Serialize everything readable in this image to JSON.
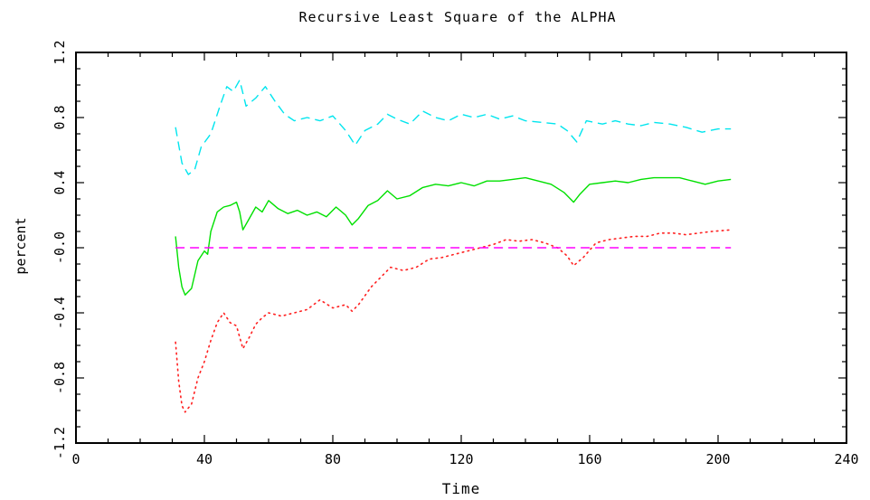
{
  "chart_data": {
    "type": "line",
    "title": "Recursive Least Square of the ALPHA",
    "xlabel": "Time",
    "ylabel": "percent",
    "xlim": [
      0,
      240
    ],
    "ylim": [
      -1.2,
      1.2
    ],
    "x_ticks": [
      0,
      40,
      80,
      120,
      160,
      200,
      240
    ],
    "x_tick_labels": [
      "0",
      "40",
      "80",
      "120",
      "160",
      "200",
      "240"
    ],
    "y_ticks": [
      -1.2,
      -0.8,
      -0.4,
      0.0,
      0.4,
      0.8,
      1.2
    ],
    "y_tick_labels": [
      "-1.2",
      "-0.8",
      "-0.4",
      "-0.0",
      "0.4",
      "0.8",
      "1.2"
    ],
    "grid": false,
    "series": [
      {
        "color": "#00e5ee",
        "style": "dashed",
        "points": [
          [
            31,
            0.74
          ],
          [
            33,
            0.52
          ],
          [
            35,
            0.45
          ],
          [
            37,
            0.48
          ],
          [
            39,
            0.62
          ],
          [
            42,
            0.7
          ],
          [
            45,
            0.88
          ],
          [
            47,
            0.99
          ],
          [
            49,
            0.96
          ],
          [
            51,
            1.03
          ],
          [
            53,
            0.87
          ],
          [
            56,
            0.92
          ],
          [
            59,
            0.99
          ],
          [
            62,
            0.9
          ],
          [
            65,
            0.82
          ],
          [
            68,
            0.78
          ],
          [
            72,
            0.8
          ],
          [
            76,
            0.78
          ],
          [
            80,
            0.81
          ],
          [
            84,
            0.72
          ],
          [
            87,
            0.63
          ],
          [
            90,
            0.72
          ],
          [
            94,
            0.76
          ],
          [
            97,
            0.82
          ],
          [
            100,
            0.79
          ],
          [
            104,
            0.76
          ],
          [
            108,
            0.84
          ],
          [
            112,
            0.8
          ],
          [
            116,
            0.78
          ],
          [
            120,
            0.82
          ],
          [
            124,
            0.8
          ],
          [
            128,
            0.82
          ],
          [
            132,
            0.79
          ],
          [
            136,
            0.81
          ],
          [
            140,
            0.78
          ],
          [
            145,
            0.77
          ],
          [
            150,
            0.76
          ],
          [
            153,
            0.72
          ],
          [
            156,
            0.65
          ],
          [
            159,
            0.78
          ],
          [
            164,
            0.76
          ],
          [
            168,
            0.78
          ],
          [
            172,
            0.76
          ],
          [
            176,
            0.75
          ],
          [
            180,
            0.77
          ],
          [
            185,
            0.76
          ],
          [
            190,
            0.74
          ],
          [
            195,
            0.71
          ],
          [
            200,
            0.73
          ],
          [
            204,
            0.73
          ]
        ]
      },
      {
        "color": "#00e000",
        "style": "solid",
        "points": [
          [
            31,
            0.07
          ],
          [
            32,
            -0.12
          ],
          [
            33,
            -0.24
          ],
          [
            34,
            -0.29
          ],
          [
            36,
            -0.25
          ],
          [
            38,
            -0.08
          ],
          [
            40,
            -0.02
          ],
          [
            41,
            -0.04
          ],
          [
            42,
            0.1
          ],
          [
            44,
            0.22
          ],
          [
            46,
            0.25
          ],
          [
            48,
            0.26
          ],
          [
            50,
            0.28
          ],
          [
            51,
            0.22
          ],
          [
            52,
            0.11
          ],
          [
            54,
            0.18
          ],
          [
            56,
            0.25
          ],
          [
            58,
            0.22
          ],
          [
            60,
            0.29
          ],
          [
            63,
            0.24
          ],
          [
            66,
            0.21
          ],
          [
            69,
            0.23
          ],
          [
            72,
            0.2
          ],
          [
            75,
            0.22
          ],
          [
            78,
            0.19
          ],
          [
            81,
            0.25
          ],
          [
            84,
            0.2
          ],
          [
            86,
            0.14
          ],
          [
            88,
            0.18
          ],
          [
            91,
            0.26
          ],
          [
            94,
            0.29
          ],
          [
            97,
            0.35
          ],
          [
            100,
            0.3
          ],
          [
            104,
            0.32
          ],
          [
            108,
            0.37
          ],
          [
            112,
            0.39
          ],
          [
            116,
            0.38
          ],
          [
            120,
            0.4
          ],
          [
            124,
            0.38
          ],
          [
            128,
            0.41
          ],
          [
            132,
            0.41
          ],
          [
            136,
            0.42
          ],
          [
            140,
            0.43
          ],
          [
            144,
            0.41
          ],
          [
            148,
            0.39
          ],
          [
            152,
            0.34
          ],
          [
            155,
            0.28
          ],
          [
            157,
            0.33
          ],
          [
            160,
            0.39
          ],
          [
            164,
            0.4
          ],
          [
            168,
            0.41
          ],
          [
            172,
            0.4
          ],
          [
            176,
            0.42
          ],
          [
            180,
            0.43
          ],
          [
            184,
            0.43
          ],
          [
            188,
            0.43
          ],
          [
            192,
            0.41
          ],
          [
            196,
            0.39
          ],
          [
            200,
            0.41
          ],
          [
            204,
            0.42
          ]
        ]
      },
      {
        "color": "#ff2020",
        "style": "dotted",
        "points": [
          [
            31,
            -0.58
          ],
          [
            32,
            -0.82
          ],
          [
            33,
            -0.97
          ],
          [
            34,
            -1.01
          ],
          [
            36,
            -0.96
          ],
          [
            38,
            -0.8
          ],
          [
            40,
            -0.7
          ],
          [
            42,
            -0.57
          ],
          [
            44,
            -0.46
          ],
          [
            46,
            -0.4
          ],
          [
            48,
            -0.46
          ],
          [
            50,
            -0.48
          ],
          [
            52,
            -0.62
          ],
          [
            54,
            -0.55
          ],
          [
            56,
            -0.47
          ],
          [
            58,
            -0.43
          ],
          [
            60,
            -0.4
          ],
          [
            64,
            -0.42
          ],
          [
            68,
            -0.4
          ],
          [
            72,
            -0.38
          ],
          [
            76,
            -0.32
          ],
          [
            80,
            -0.37
          ],
          [
            84,
            -0.35
          ],
          [
            86,
            -0.39
          ],
          [
            88,
            -0.35
          ],
          [
            92,
            -0.24
          ],
          [
            96,
            -0.16
          ],
          [
            98,
            -0.12
          ],
          [
            102,
            -0.14
          ],
          [
            106,
            -0.12
          ],
          [
            110,
            -0.07
          ],
          [
            114,
            -0.06
          ],
          [
            118,
            -0.04
          ],
          [
            122,
            -0.02
          ],
          [
            126,
            0.0
          ],
          [
            130,
            0.02
          ],
          [
            134,
            0.05
          ],
          [
            138,
            0.04
          ],
          [
            142,
            0.05
          ],
          [
            146,
            0.03
          ],
          [
            150,
            0.0
          ],
          [
            153,
            -0.05
          ],
          [
            155,
            -0.11
          ],
          [
            158,
            -0.06
          ],
          [
            162,
            0.03
          ],
          [
            166,
            0.05
          ],
          [
            170,
            0.06
          ],
          [
            174,
            0.07
          ],
          [
            178,
            0.07
          ],
          [
            182,
            0.09
          ],
          [
            186,
            0.09
          ],
          [
            190,
            0.08
          ],
          [
            194,
            0.09
          ],
          [
            198,
            0.1
          ],
          [
            204,
            0.11
          ]
        ]
      },
      {
        "color": "#ff00ff",
        "style": "dashed",
        "points": [
          [
            31,
            0.0
          ],
          [
            204,
            0.0
          ]
        ]
      }
    ]
  }
}
